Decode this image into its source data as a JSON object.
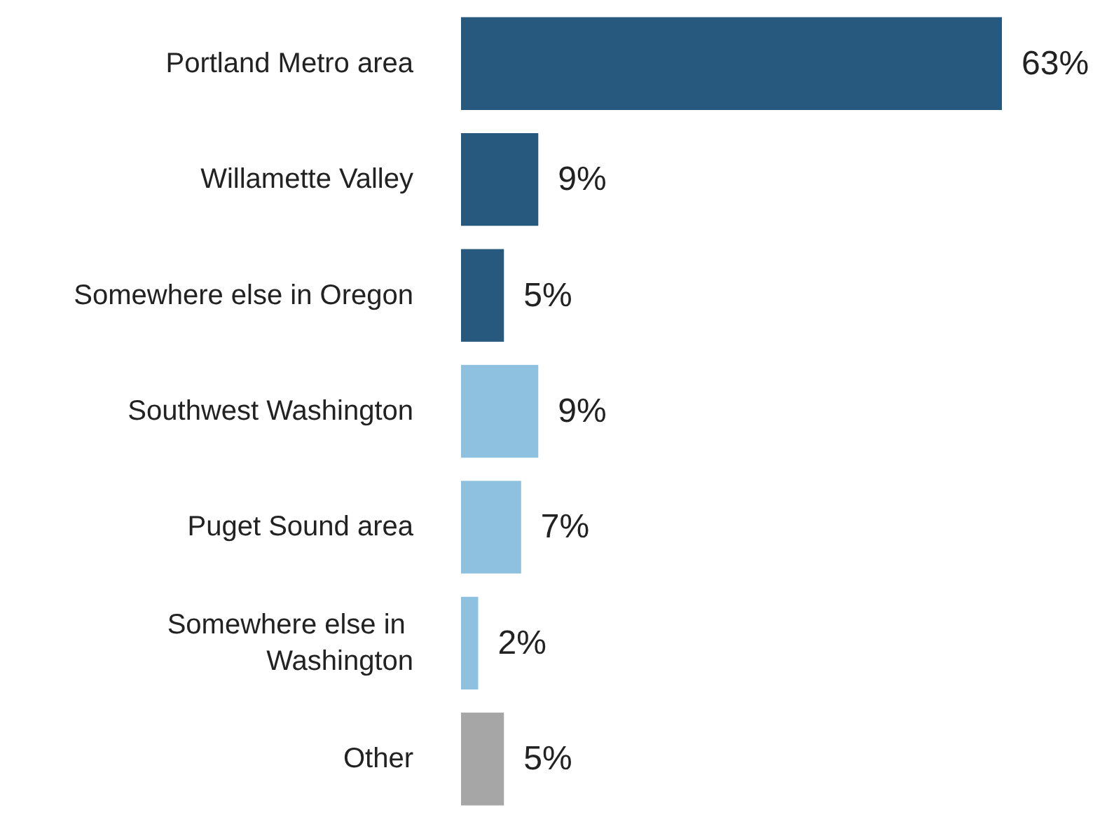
{
  "chart_data": {
    "type": "bar",
    "orientation": "horizontal",
    "categories": [
      "Portland Metro area",
      "Willamette Valley",
      "Somewhere else in Oregon",
      "Southwest Washington",
      "Puget Sound area",
      "Somewhere else in Washington",
      "Other"
    ],
    "values": [
      63,
      9,
      5,
      9,
      7,
      2,
      5
    ],
    "colors": [
      "#27597f",
      "#27597f",
      "#27597f",
      "#8ec1df",
      "#8ec1df",
      "#8ec1df",
      "#a6a6a6"
    ],
    "value_labels": [
      "63%",
      "9%",
      "5%",
      "9%",
      "7%",
      "2%",
      "5%"
    ],
    "tick_labels": "y"
  }
}
